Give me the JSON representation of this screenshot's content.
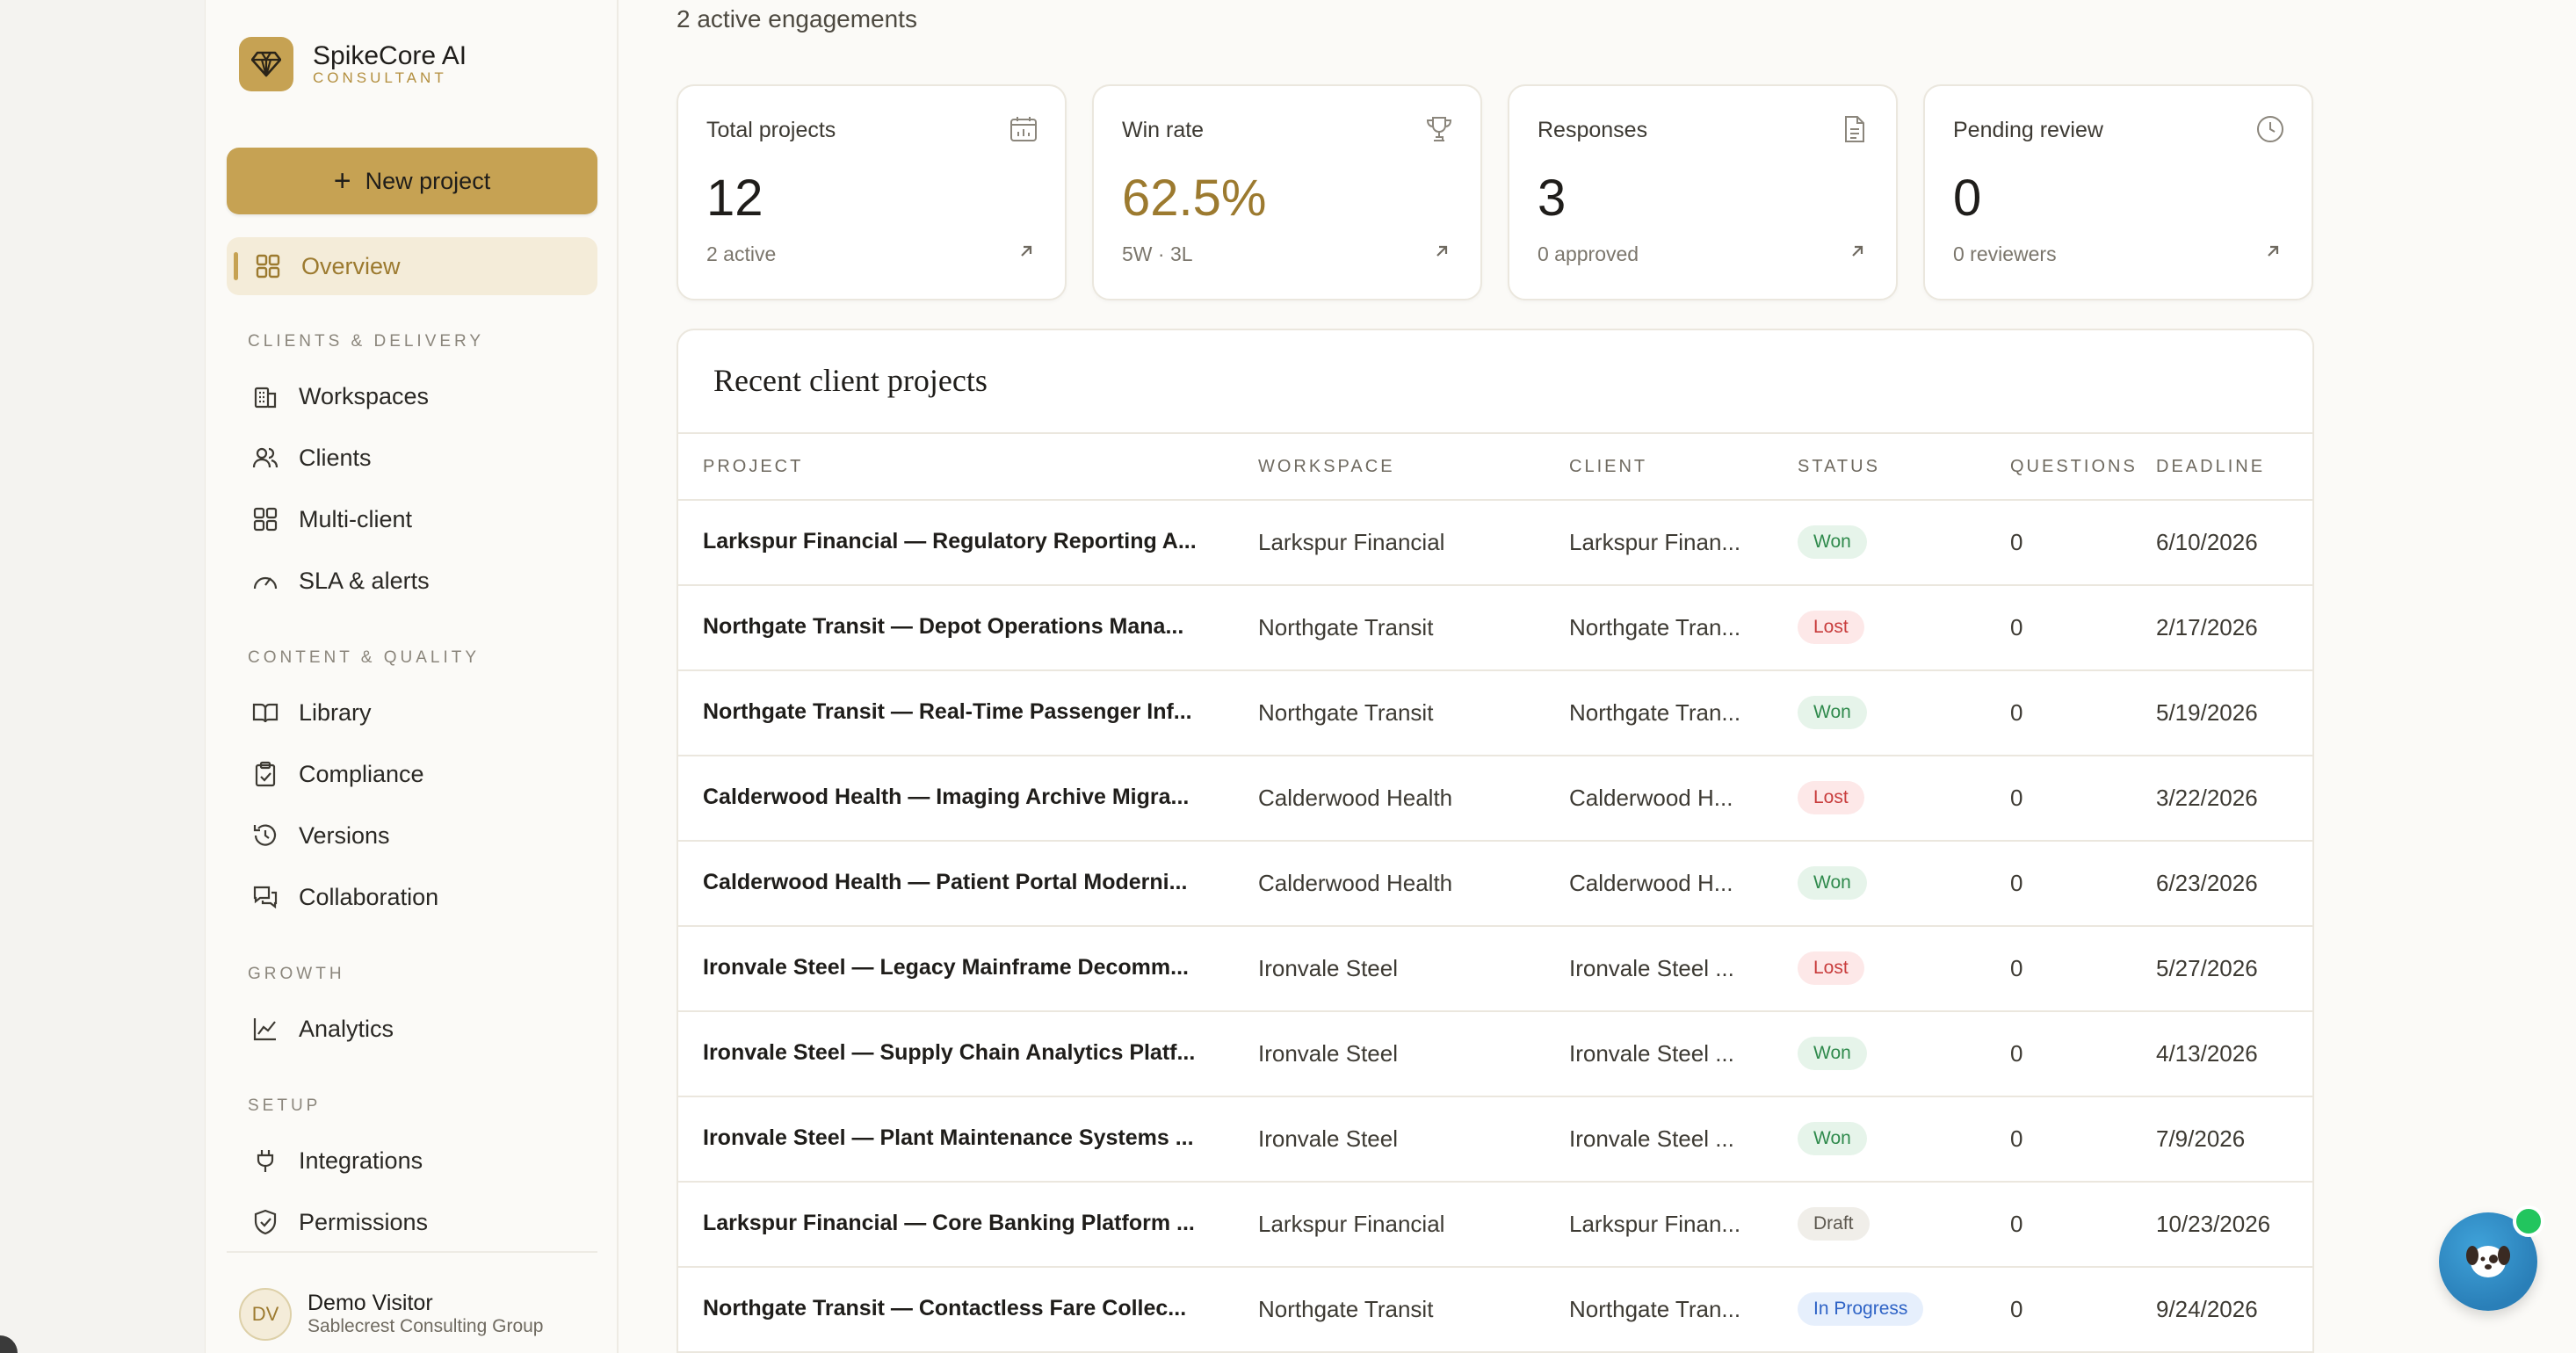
{
  "brand": {
    "name": "SpikeCore AI",
    "sub": "CONSULTANT"
  },
  "sidebar": {
    "new_project": "New project",
    "overview": "Overview",
    "sections": [
      {
        "title": "CLIENTS & DELIVERY",
        "items": [
          "Workspaces",
          "Clients",
          "Multi-client",
          "SLA & alerts"
        ]
      },
      {
        "title": "CONTENT & QUALITY",
        "items": [
          "Library",
          "Compliance",
          "Versions",
          "Collaboration"
        ]
      },
      {
        "title": "GROWTH",
        "items": [
          "Analytics"
        ]
      },
      {
        "title": "SETUP",
        "items": [
          "Integrations",
          "Permissions"
        ]
      }
    ],
    "user": {
      "initials": "DV",
      "name": "Demo Visitor",
      "org": "Sablecrest Consulting Group"
    }
  },
  "main": {
    "subtitle": "2 active engagements",
    "stats": [
      {
        "label": "Total projects",
        "value": "12",
        "foot": "2 active",
        "icon": "calendar-chart-icon"
      },
      {
        "label": "Win rate",
        "value": "62.5%",
        "foot": "5W · 3L",
        "icon": "trophy-icon"
      },
      {
        "label": "Responses",
        "value": "3",
        "foot": "0 approved",
        "icon": "document-icon"
      },
      {
        "label": "Pending review",
        "value": "0",
        "foot": "0 reviewers",
        "icon": "clock-icon"
      }
    ],
    "projects": {
      "title": "Recent client projects",
      "columns": [
        "PROJECT",
        "WORKSPACE",
        "CLIENT",
        "STATUS",
        "QUESTIONS",
        "DEADLINE"
      ],
      "rows": [
        {
          "project": "Larkspur Financial — Regulatory Reporting A...",
          "workspace": "Larkspur Financial",
          "client": "Larkspur Finan...",
          "status": "Won",
          "questions": "0",
          "deadline": "6/10/2026"
        },
        {
          "project": "Northgate Transit — Depot Operations Mana...",
          "workspace": "Northgate Transit",
          "client": "Northgate Tran...",
          "status": "Lost",
          "questions": "0",
          "deadline": "2/17/2026"
        },
        {
          "project": "Northgate Transit — Real-Time Passenger Inf...",
          "workspace": "Northgate Transit",
          "client": "Northgate Tran...",
          "status": "Won",
          "questions": "0",
          "deadline": "5/19/2026"
        },
        {
          "project": "Calderwood Health — Imaging Archive Migra...",
          "workspace": "Calderwood Health",
          "client": "Calderwood H...",
          "status": "Lost",
          "questions": "0",
          "deadline": "3/22/2026"
        },
        {
          "project": "Calderwood Health — Patient Portal Moderni...",
          "workspace": "Calderwood Health",
          "client": "Calderwood H...",
          "status": "Won",
          "questions": "0",
          "deadline": "6/23/2026"
        },
        {
          "project": "Ironvale Steel — Legacy Mainframe Decomm...",
          "workspace": "Ironvale Steel",
          "client": "Ironvale Steel ...",
          "status": "Lost",
          "questions": "0",
          "deadline": "5/27/2026"
        },
        {
          "project": "Ironvale Steel — Supply Chain Analytics Platf...",
          "workspace": "Ironvale Steel",
          "client": "Ironvale Steel ...",
          "status": "Won",
          "questions": "0",
          "deadline": "4/13/2026"
        },
        {
          "project": "Ironvale Steel — Plant Maintenance Systems ...",
          "workspace": "Ironvale Steel",
          "client": "Ironvale Steel ...",
          "status": "Won",
          "questions": "0",
          "deadline": "7/9/2026"
        },
        {
          "project": "Larkspur Financial — Core Banking Platform ...",
          "workspace": "Larkspur Financial",
          "client": "Larkspur Finan...",
          "status": "Draft",
          "questions": "0",
          "deadline": "10/23/2026"
        },
        {
          "project": "Northgate Transit — Contactless Fare Collec...",
          "workspace": "Northgate Transit",
          "client": "Northgate Tran...",
          "status": "In Progress",
          "questions": "0",
          "deadline": "9/24/2026"
        }
      ]
    }
  },
  "colors": {
    "accent": "#c6a253",
    "accent_text": "#9c7a2f",
    "won": "#2f8a4c",
    "lost": "#c83c3c",
    "progress": "#2e63c6"
  },
  "chat": {
    "icon": "chat-mascot-icon"
  }
}
